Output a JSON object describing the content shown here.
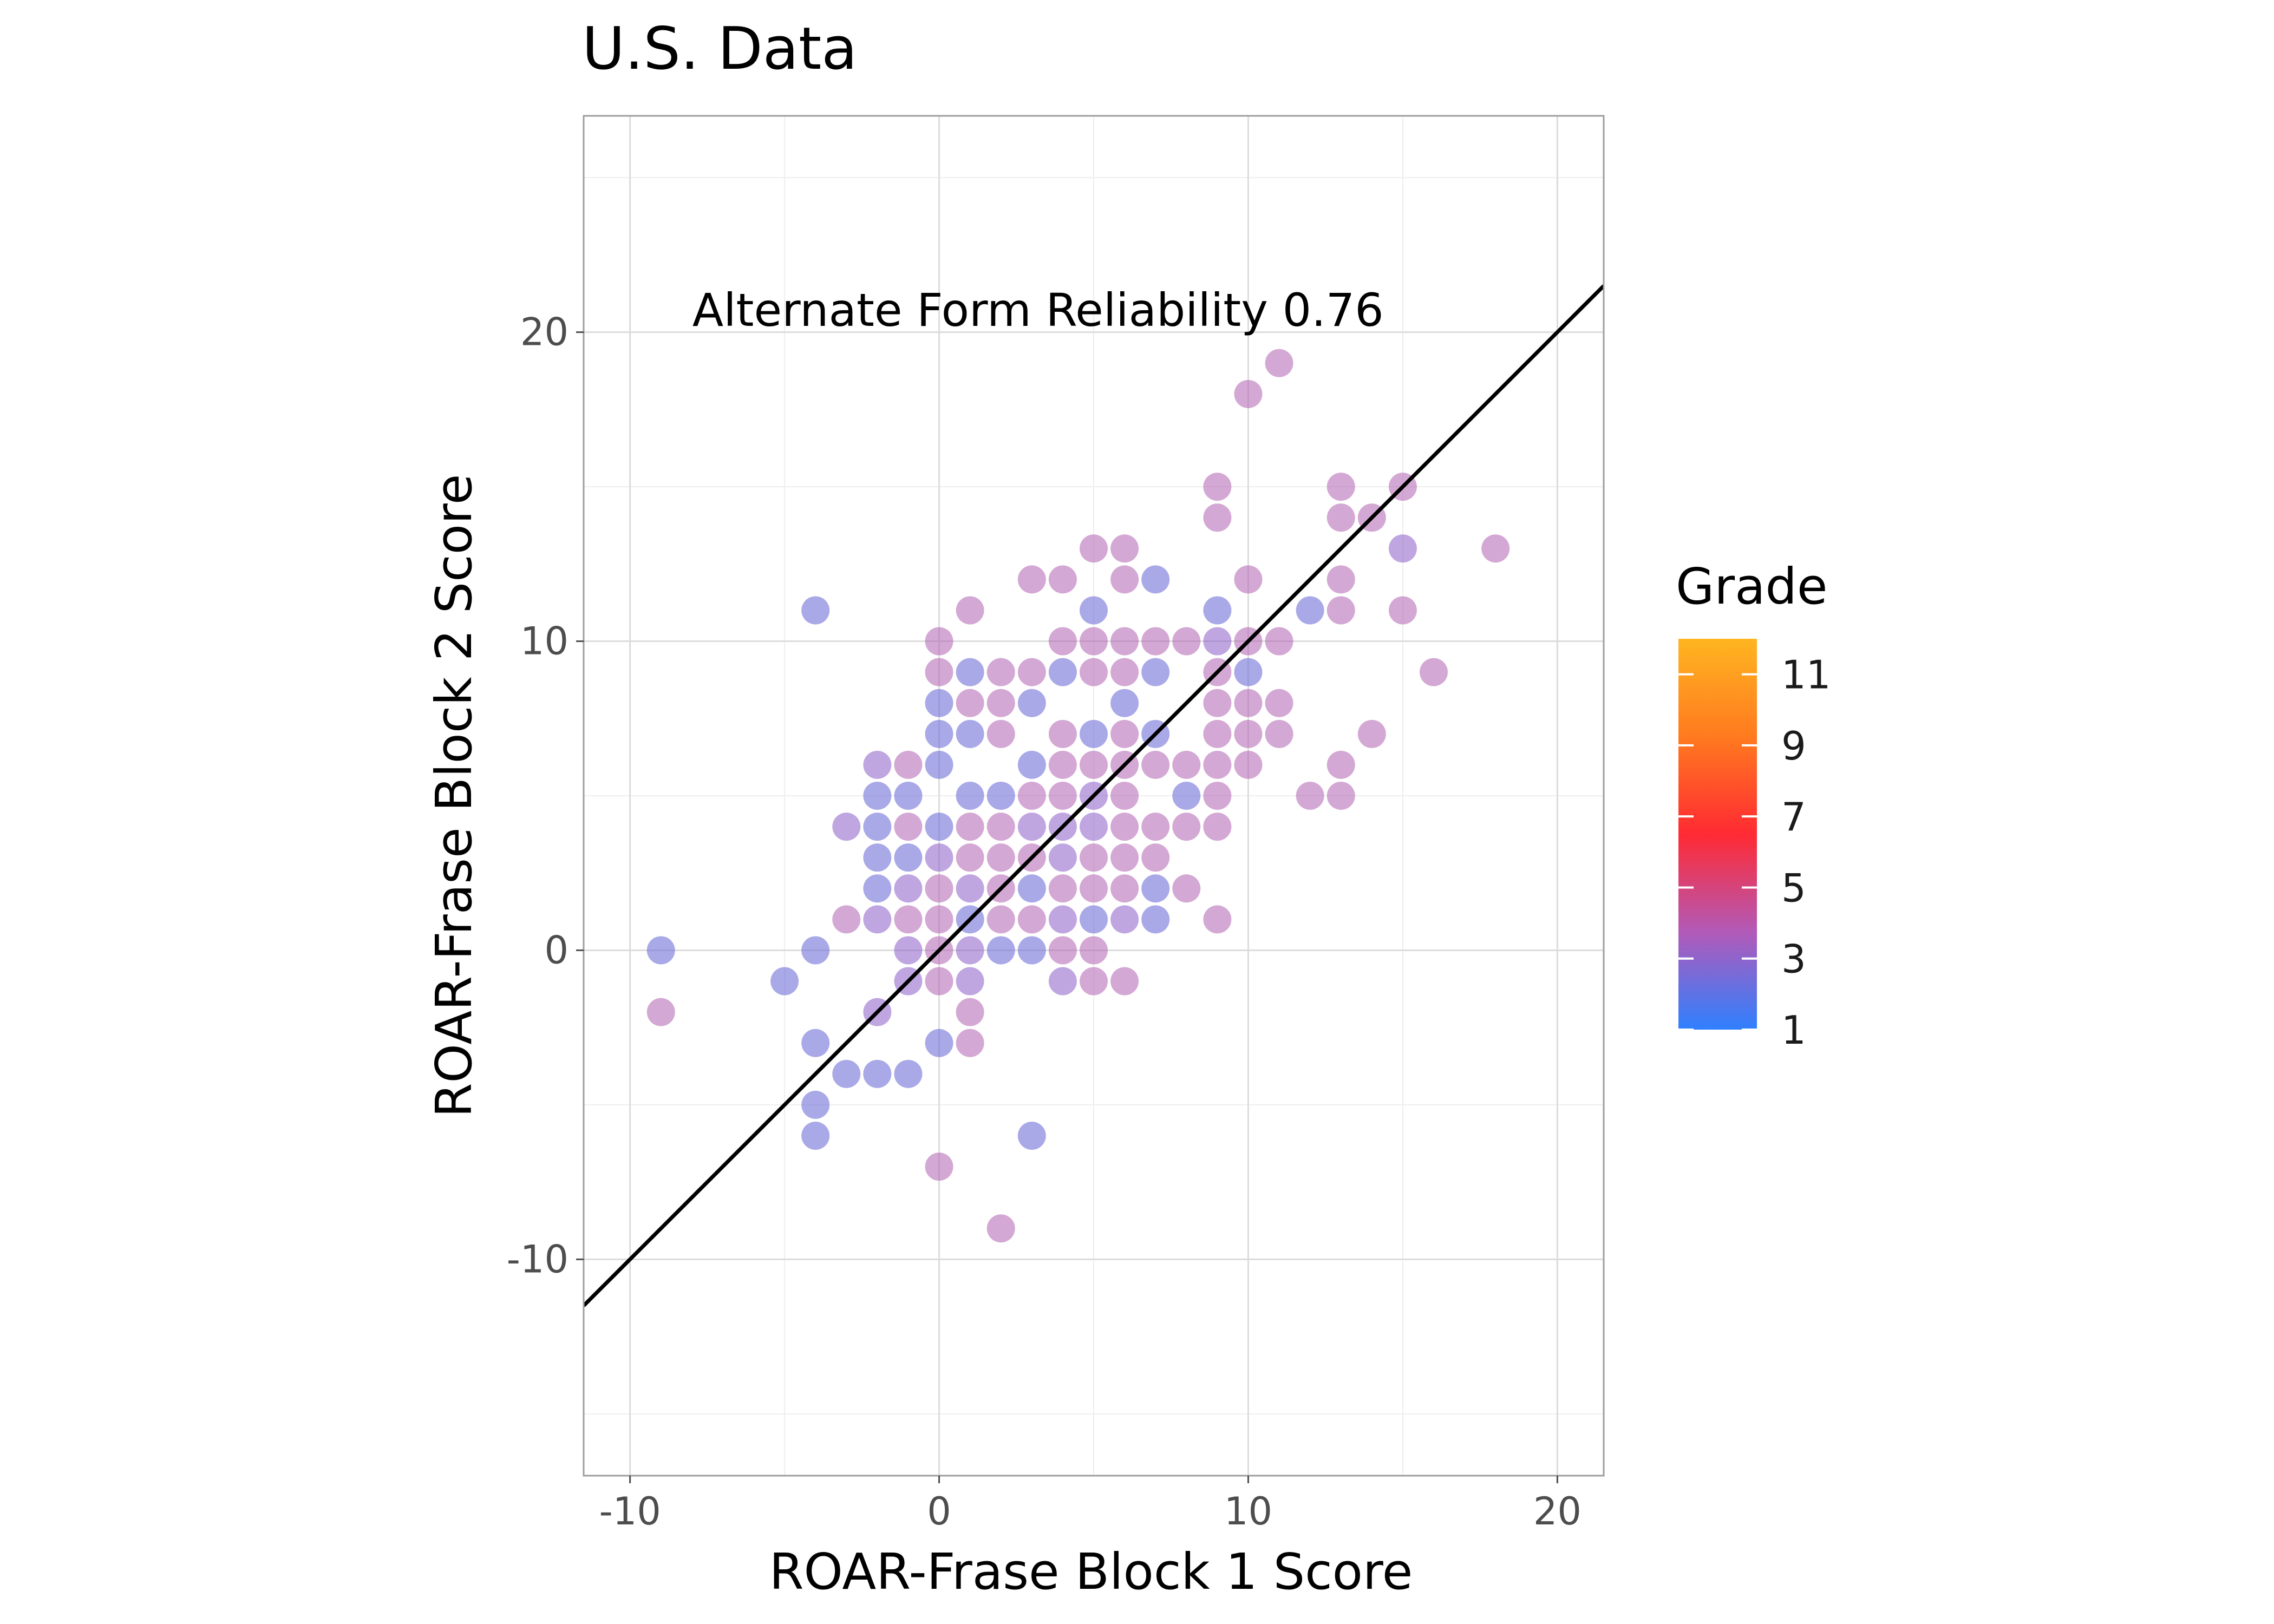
{
  "chart_data": {
    "type": "scatter",
    "title": "U.S. Data",
    "xlabel": "ROAR-Frase Block 1 Score",
    "ylabel": "ROAR-Frase Block 2 Score",
    "xlim": [
      -11.5,
      21.5
    ],
    "ylim": [
      -17,
      27
    ],
    "x_ticks": [
      -10,
      0,
      10,
      20
    ],
    "y_ticks": [
      -10,
      0,
      10,
      20
    ],
    "grid": true,
    "annotation": "Alternate Form Reliability 0.76",
    "fit_line": {
      "slope": 1.0,
      "intercept": 0
    },
    "legend": {
      "title": "Grade",
      "position": "right",
      "ticks": [
        1,
        3,
        5,
        7,
        9,
        11
      ],
      "range": [
        1,
        12
      ],
      "colors": [
        "#2f80ff",
        "#b25ab8",
        "#ff2a33",
        "#ff7a1f",
        "#ffb520"
      ]
    },
    "colors": {
      "cool_point": "#6f6fd8",
      "warm_point": "#b060b0",
      "fit_line": "#000000"
    },
    "points": [
      [
        -9,
        0,
        1
      ],
      [
        -9,
        -2,
        3
      ],
      [
        -5,
        -1,
        1
      ],
      [
        -4,
        11,
        1
      ],
      [
        -4,
        0,
        1
      ],
      [
        -4,
        -3,
        1
      ],
      [
        -4,
        -5,
        1
      ],
      [
        -4,
        -6,
        1
      ],
      [
        -3,
        4,
        2
      ],
      [
        -3,
        1,
        3
      ],
      [
        -3,
        -4,
        1
      ],
      [
        -2,
        6,
        2
      ],
      [
        -2,
        5,
        1
      ],
      [
        -2,
        4,
        1
      ],
      [
        -2,
        3,
        1
      ],
      [
        -2,
        2,
        1
      ],
      [
        -2,
        1,
        2
      ],
      [
        -2,
        -2,
        2
      ],
      [
        -2,
        -4,
        1
      ],
      [
        -1,
        6,
        3
      ],
      [
        -1,
        5,
        1
      ],
      [
        -1,
        4,
        3
      ],
      [
        -1,
        3,
        1
      ],
      [
        -1,
        2,
        2
      ],
      [
        -1,
        1,
        3
      ],
      [
        -1,
        0,
        2
      ],
      [
        -1,
        -1,
        2
      ],
      [
        -1,
        -4,
        1
      ],
      [
        0,
        10,
        3
      ],
      [
        0,
        9,
        3
      ],
      [
        0,
        8,
        1
      ],
      [
        0,
        7,
        1
      ],
      [
        0,
        6,
        1
      ],
      [
        0,
        4,
        1
      ],
      [
        0,
        3,
        2
      ],
      [
        0,
        2,
        3
      ],
      [
        0,
        1,
        3
      ],
      [
        0,
        0,
        3
      ],
      [
        0,
        -1,
        3
      ],
      [
        0,
        -3,
        1
      ],
      [
        0,
        -7,
        3
      ],
      [
        1,
        11,
        3
      ],
      [
        1,
        9,
        1
      ],
      [
        1,
        8,
        3
      ],
      [
        1,
        7,
        1
      ],
      [
        1,
        5,
        1
      ],
      [
        1,
        4,
        3
      ],
      [
        1,
        3,
        3
      ],
      [
        1,
        2,
        2
      ],
      [
        1,
        1,
        1
      ],
      [
        1,
        0,
        2
      ],
      [
        1,
        -1,
        2
      ],
      [
        1,
        -2,
        3
      ],
      [
        1,
        -3,
        3
      ],
      [
        2,
        9,
        3
      ],
      [
        2,
        8,
        3
      ],
      [
        2,
        7,
        3
      ],
      [
        2,
        5,
        1
      ],
      [
        2,
        4,
        3
      ],
      [
        2,
        3,
        3
      ],
      [
        2,
        2,
        3
      ],
      [
        2,
        1,
        3
      ],
      [
        2,
        0,
        1
      ],
      [
        2,
        -9,
        3
      ],
      [
        3,
        12,
        3
      ],
      [
        3,
        9,
        3
      ],
      [
        3,
        8,
        1
      ],
      [
        3,
        6,
        1
      ],
      [
        3,
        5,
        3
      ],
      [
        3,
        4,
        2
      ],
      [
        3,
        3,
        3
      ],
      [
        3,
        2,
        1
      ],
      [
        3,
        1,
        3
      ],
      [
        3,
        0,
        1
      ],
      [
        3,
        -6,
        1
      ],
      [
        4,
        12,
        3
      ],
      [
        4,
        10,
        3
      ],
      [
        4,
        9,
        1
      ],
      [
        4,
        7,
        3
      ],
      [
        4,
        6,
        3
      ],
      [
        4,
        5,
        3
      ],
      [
        4,
        4,
        2
      ],
      [
        4,
        3,
        2
      ],
      [
        4,
        2,
        3
      ],
      [
        4,
        1,
        2
      ],
      [
        4,
        0,
        3
      ],
      [
        4,
        -1,
        2
      ],
      [
        5,
        13,
        3
      ],
      [
        5,
        11,
        1
      ],
      [
        5,
        10,
        3
      ],
      [
        5,
        9,
        3
      ],
      [
        5,
        7,
        1
      ],
      [
        5,
        6,
        3
      ],
      [
        5,
        5,
        2
      ],
      [
        5,
        4,
        2
      ],
      [
        5,
        3,
        3
      ],
      [
        5,
        2,
        3
      ],
      [
        5,
        1,
        1
      ],
      [
        5,
        0,
        3
      ],
      [
        5,
        -1,
        3
      ],
      [
        6,
        13,
        3
      ],
      [
        6,
        12,
        3
      ],
      [
        6,
        10,
        3
      ],
      [
        6,
        9,
        3
      ],
      [
        6,
        8,
        1
      ],
      [
        6,
        7,
        3
      ],
      [
        6,
        6,
        3
      ],
      [
        6,
        5,
        3
      ],
      [
        6,
        4,
        3
      ],
      [
        6,
        3,
        3
      ],
      [
        6,
        2,
        3
      ],
      [
        6,
        1,
        2
      ],
      [
        6,
        -1,
        3
      ],
      [
        7,
        12,
        1
      ],
      [
        7,
        10,
        3
      ],
      [
        7,
        9,
        1
      ],
      [
        7,
        7,
        1
      ],
      [
        7,
        6,
        3
      ],
      [
        7,
        4,
        3
      ],
      [
        7,
        3,
        3
      ],
      [
        7,
        2,
        1
      ],
      [
        7,
        1,
        1
      ],
      [
        8,
        10,
        3
      ],
      [
        8,
        6,
        3
      ],
      [
        8,
        5,
        1
      ],
      [
        8,
        4,
        3
      ],
      [
        8,
        2,
        3
      ],
      [
        9,
        15,
        3
      ],
      [
        9,
        14,
        3
      ],
      [
        9,
        11,
        1
      ],
      [
        9,
        10,
        2
      ],
      [
        9,
        9,
        3
      ],
      [
        9,
        8,
        3
      ],
      [
        9,
        7,
        3
      ],
      [
        9,
        6,
        3
      ],
      [
        9,
        5,
        3
      ],
      [
        9,
        4,
        3
      ],
      [
        9,
        1,
        3
      ],
      [
        10,
        18,
        3
      ],
      [
        10,
        12,
        3
      ],
      [
        10,
        10,
        3
      ],
      [
        10,
        9,
        1
      ],
      [
        10,
        8,
        3
      ],
      [
        10,
        7,
        3
      ],
      [
        10,
        6,
        3
      ],
      [
        11,
        19,
        3
      ],
      [
        11,
        10,
        3
      ],
      [
        11,
        8,
        3
      ],
      [
        11,
        7,
        3
      ],
      [
        12,
        11,
        1
      ],
      [
        12,
        5,
        3
      ],
      [
        13,
        15,
        3
      ],
      [
        13,
        14,
        3
      ],
      [
        13,
        12,
        3
      ],
      [
        13,
        11,
        3
      ],
      [
        13,
        6,
        3
      ],
      [
        13,
        5,
        3
      ],
      [
        14,
        14,
        3
      ],
      [
        14,
        7,
        3
      ],
      [
        15,
        15,
        3
      ],
      [
        15,
        13,
        2
      ],
      [
        15,
        11,
        3
      ],
      [
        16,
        9,
        3
      ],
      [
        18,
        13,
        3
      ]
    ]
  }
}
